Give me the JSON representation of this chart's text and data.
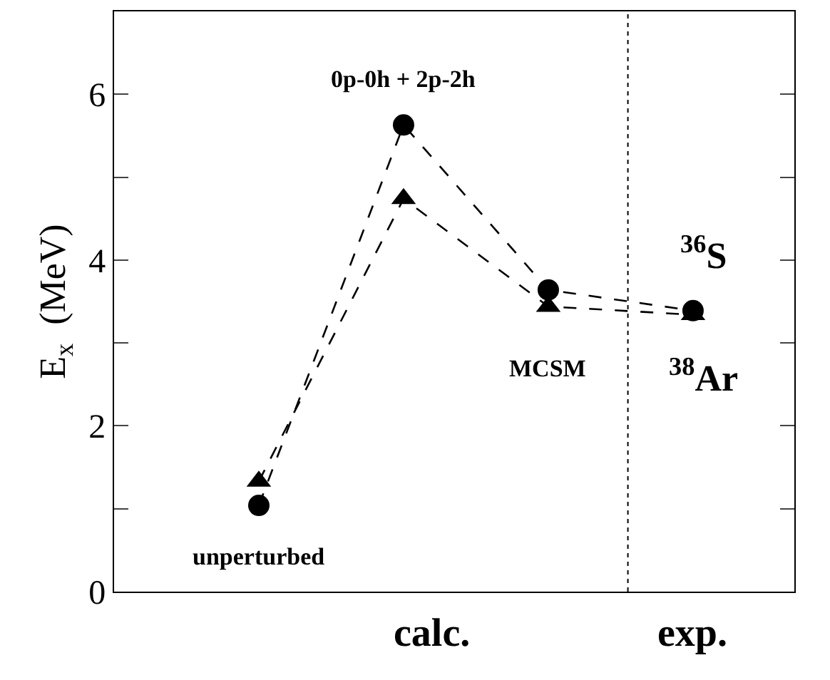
{
  "chart_data": {
    "type": "line",
    "ylabel": "E$_{x}$  (MeV)",
    "categories": [
      null,
      null,
      null,
      null
    ],
    "ylim": [
      0,
      7
    ],
    "yticks": [
      0,
      {
        "value": 1,
        "label": null
      },
      2,
      {
        "value": 3,
        "label": null
      },
      4,
      {
        "value": 5,
        "label": null
      },
      6
    ],
    "tick_labels": "y",
    "line_style": "dashed",
    "series": [
      {
        "name": "$^{36}$S",
        "color": "#000000",
        "marker": "circle",
        "values": [
          1.04,
          5.63,
          3.64,
          3.39
        ]
      },
      {
        "name": "$^{38}$Ar",
        "color": "#000000",
        "marker": "triangle",
        "values": [
          1.33,
          4.74,
          3.44,
          3.34
        ]
      }
    ],
    "ref_lines": [
      {
        "axis": "x",
        "color": "#000000",
        "line_style": "dotted"
      }
    ],
    "annotations": [
      "unperturbed",
      "0p-0h + 2p-2h",
      "MCSM",
      "calc.",
      "exp."
    ]
  }
}
